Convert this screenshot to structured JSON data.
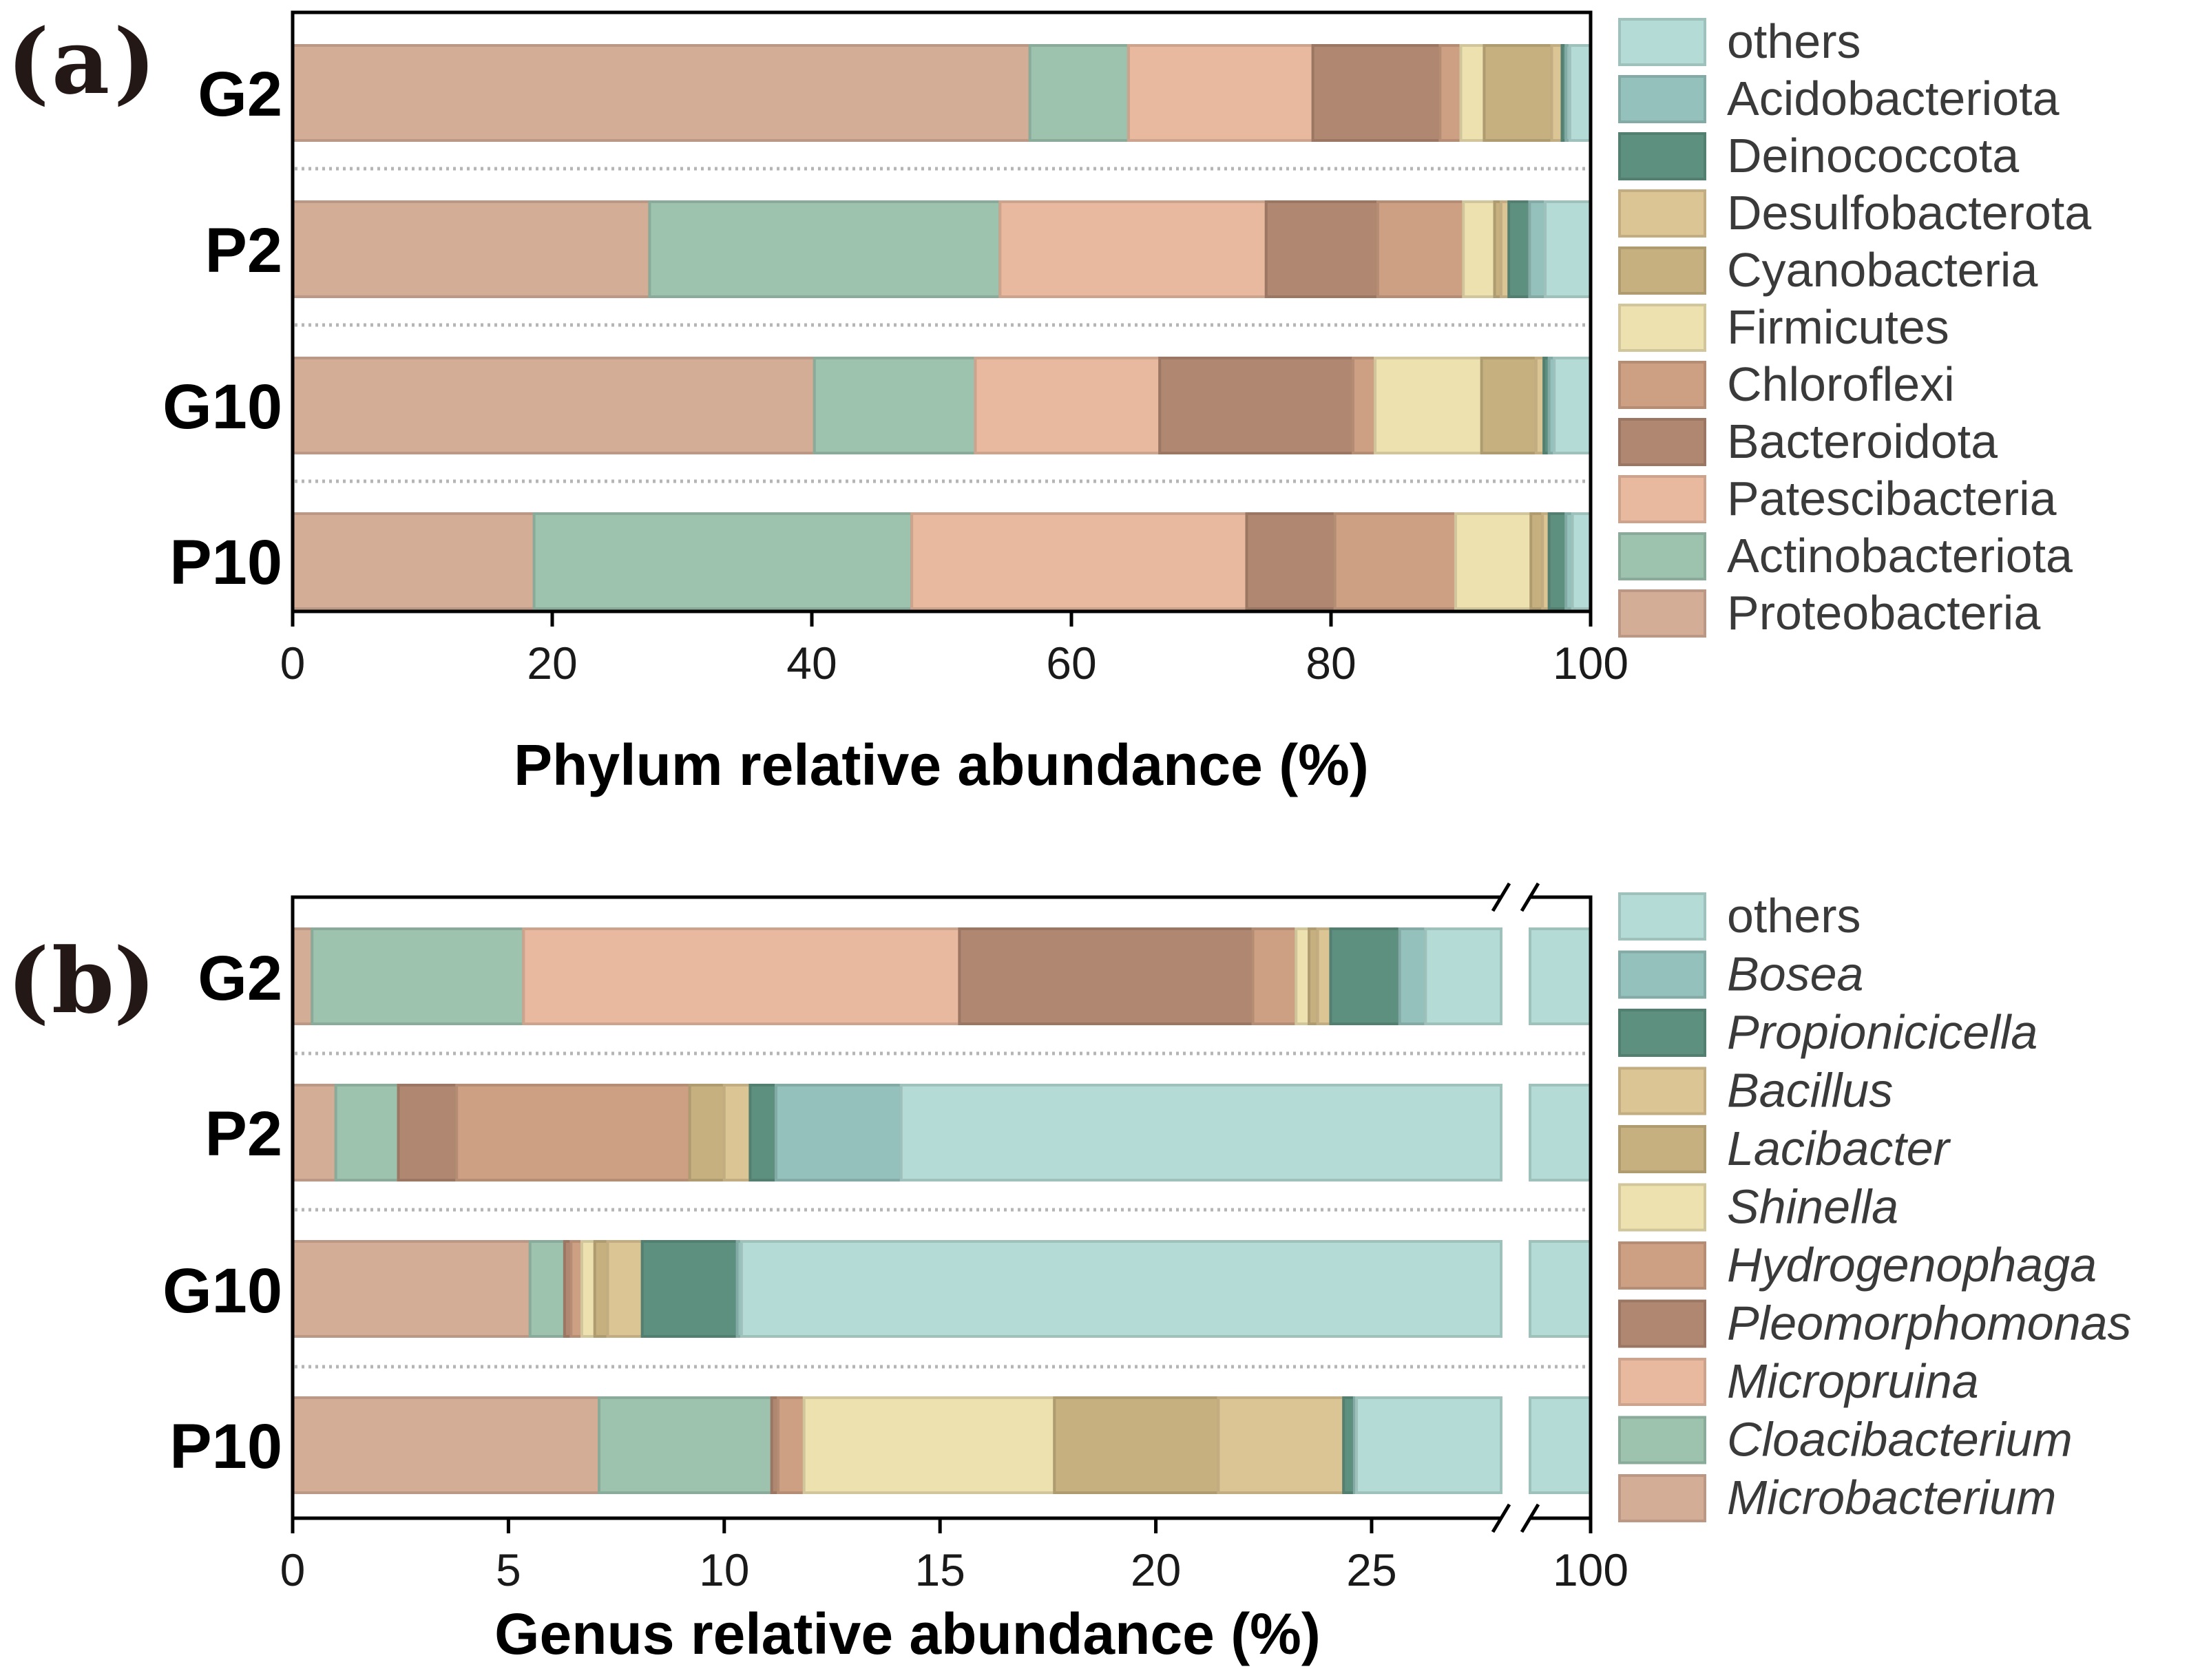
{
  "figure": {
    "panels": [
      {
        "id": "a",
        "letter": "a",
        "paren_open": "(",
        "paren_close": ")"
      },
      {
        "id": "b",
        "letter": "b",
        "paren_open": "(",
        "paren_close": ")"
      }
    ]
  },
  "chart_data": [
    {
      "type": "bar",
      "orientation": "horizontal",
      "stacked": true,
      "panel": "a",
      "title": "",
      "xlabel": "Phylum relative abundance (%)",
      "ylabel": "",
      "xlim": [
        0,
        100
      ],
      "xticks": [
        0,
        20,
        40,
        60,
        80,
        100
      ],
      "xtick_labels": [
        "0",
        "20",
        "40",
        "60",
        "80",
        "100"
      ],
      "categories": [
        "G2",
        "P2",
        "G10",
        "P10"
      ],
      "legend_position": "right",
      "legend_italic": false,
      "legend_order": [
        "others",
        "Acidobacteriota",
        "Deinococcota",
        "Desulfobacterota",
        "Cyanobacteria",
        "Firmicutes",
        "Chloroflexi",
        "Bacteroidota",
        "Patescibacteria",
        "Actinobacteriota",
        "Proteobacteria"
      ],
      "series": [
        {
          "name": "Proteobacteria",
          "color": "#d4ad97",
          "values": [
            56.8,
            27.5,
            40.2,
            18.6
          ]
        },
        {
          "name": "Actinobacteriota",
          "color": "#9dc2ae",
          "values": [
            7.6,
            27.0,
            12.4,
            29.1
          ]
        },
        {
          "name": "Patescibacteria",
          "color": "#e8b99f",
          "values": [
            14.2,
            20.5,
            14.2,
            25.8
          ]
        },
        {
          "name": "Bacteroidota",
          "color": "#b08770",
          "values": [
            9.8,
            8.6,
            14.9,
            6.8
          ]
        },
        {
          "name": "Chloroflexi",
          "color": "#cda084",
          "values": [
            1.6,
            6.6,
            1.7,
            9.3
          ]
        },
        {
          "name": "Firmicutes",
          "color": "#ede1b0",
          "values": [
            1.8,
            2.4,
            8.2,
            5.8
          ]
        },
        {
          "name": "Cyanobacteria",
          "color": "#c6b07f",
          "values": [
            5.2,
            0.5,
            4.2,
            0.9
          ]
        },
        {
          "name": "Desulfobacterota",
          "color": "#dcc594",
          "values": [
            0.8,
            0.6,
            0.6,
            0.5
          ]
        },
        {
          "name": "Deinococcota",
          "color": "#5e9080",
          "values": [
            0.3,
            1.6,
            0.4,
            1.3
          ]
        },
        {
          "name": "Acidobacteriota",
          "color": "#95c1bc",
          "values": [
            0.3,
            1.2,
            0.4,
            0.5
          ]
        },
        {
          "name": "others",
          "color": "#b4dbd6",
          "values": [
            1.6,
            3.5,
            2.9,
            1.4
          ]
        }
      ]
    },
    {
      "type": "bar",
      "orientation": "horizontal",
      "stacked": true,
      "panel": "b",
      "title": "",
      "xlabel": "Genus relative abundance (%)",
      "ylabel": "",
      "xlim": [
        0,
        100
      ],
      "axis_break": {
        "from": 28,
        "to": 100
      },
      "xticks": [
        0,
        5,
        10,
        15,
        20,
        25,
        100
      ],
      "xtick_labels": [
        "0",
        "5",
        "10",
        "15",
        "20",
        "25",
        "100"
      ],
      "categories": [
        "G2",
        "P2",
        "G10",
        "P10"
      ],
      "legend_position": "right",
      "legend_italic": true,
      "legend_order": [
        "others",
        "Bosea",
        "Propionicicella",
        "Bacillus",
        "Lacibacter",
        "Shinella",
        "Hydrogenophaga",
        "Pleomorphomonas",
        "Micropruina",
        "Cloacibacterium",
        "Microbacterium"
      ],
      "series": [
        {
          "name": "Microbacterium",
          "color": "#d4ad97",
          "values": [
            0.45,
            1.0,
            5.5,
            7.1
          ]
        },
        {
          "name": "Cloacibacterium",
          "color": "#9dc2ae",
          "values": [
            4.9,
            1.45,
            0.8,
            4.0
          ]
        },
        {
          "name": "Micropruina",
          "color": "#e8b99f",
          "values": [
            10.1,
            0.0,
            0.0,
            0.0
          ]
        },
        {
          "name": "Pleomorphomonas",
          "color": "#b08770",
          "values": [
            6.8,
            1.35,
            0.15,
            0.15
          ]
        },
        {
          "name": "Hydrogenophaga",
          "color": "#cda084",
          "values": [
            1.0,
            5.4,
            0.25,
            0.6
          ]
        },
        {
          "name": "Shinella",
          "color": "#ede1b0",
          "values": [
            0.3,
            0.0,
            0.3,
            5.8
          ]
        },
        {
          "name": "Lacibacter",
          "color": "#c6b07f",
          "values": [
            0.2,
            0.8,
            0.3,
            3.8
          ]
        },
        {
          "name": "Bacillus",
          "color": "#dcc594",
          "values": [
            0.3,
            0.6,
            0.8,
            2.9
          ]
        },
        {
          "name": "Propionicicella",
          "color": "#5e9080",
          "values": [
            1.6,
            0.6,
            2.2,
            0.25
          ]
        },
        {
          "name": "Bosea",
          "color": "#95c1bc",
          "values": [
            0.6,
            2.9,
            0.1,
            0.05
          ]
        },
        {
          "name": "others",
          "color": "#b4dbd6",
          "values": [
            73.75,
            85.9,
            89.6,
            75.35
          ]
        }
      ]
    }
  ]
}
